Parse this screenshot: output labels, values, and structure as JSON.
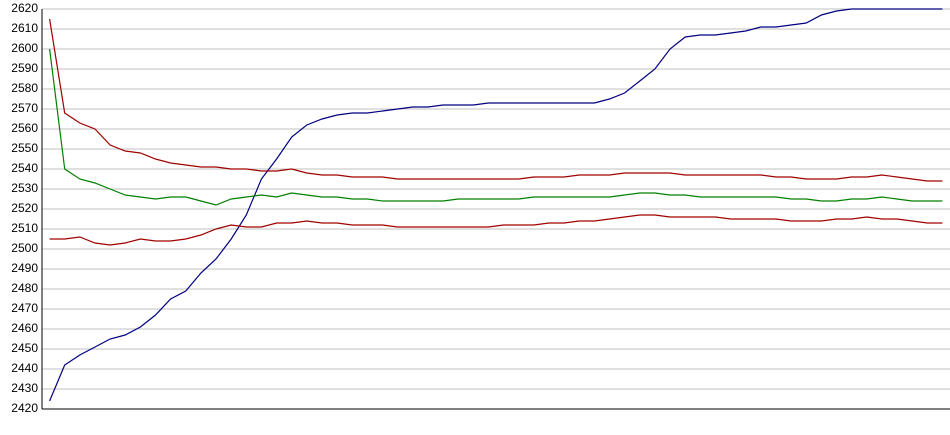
{
  "chart_data": {
    "type": "line",
    "categories": [
      null,
      null,
      null,
      null,
      null,
      null,
      null,
      null,
      null,
      null,
      null,
      null,
      null,
      null,
      null,
      null,
      null,
      null,
      null,
      null,
      null,
      null,
      null,
      null,
      null,
      null,
      null,
      null,
      null,
      null,
      null,
      null,
      null,
      null,
      null,
      null,
      null,
      null,
      null,
      null,
      null,
      null,
      null,
      null,
      null,
      null,
      null,
      null,
      null,
      null,
      null,
      null,
      null,
      null,
      null,
      null,
      null,
      null,
      null,
      null
    ],
    "series": [
      {
        "color": "#000080",
        "values": [
          2424,
          2442,
          2447,
          2451,
          2455,
          2457,
          2461,
          2467,
          2475,
          2479,
          2488,
          2495,
          2505,
          2517,
          2535,
          2545,
          2556,
          2562,
          2565,
          2567,
          2568,
          2568,
          2569,
          2570,
          2571,
          2571,
          2572,
          2572,
          2572,
          2573,
          2573,
          2573,
          2573,
          2573,
          2573,
          2573,
          2573,
          2575,
          2578,
          2584,
          2590,
          2600,
          2606,
          2607,
          2607,
          2608,
          2609,
          2611,
          2611,
          2612,
          2613,
          2617,
          2619,
          2620,
          2620,
          2620,
          2620,
          2620,
          2620,
          2620
        ]
      },
      {
        "color": "#a00000",
        "values": [
          2615,
          2568,
          2563,
          2560,
          2552,
          2549,
          2548,
          2545,
          2543,
          2542,
          2541,
          2541,
          2540,
          2540,
          2539,
          2539,
          2540,
          2538,
          2537,
          2537,
          2536,
          2536,
          2536,
          2535,
          2535,
          2535,
          2535,
          2535,
          2535,
          2535,
          2535,
          2535,
          2536,
          2536,
          2536,
          2537,
          2537,
          2537,
          2538,
          2538,
          2538,
          2538,
          2537,
          2537,
          2537,
          2537,
          2537,
          2537,
          2536,
          2536,
          2535,
          2535,
          2535,
          2536,
          2536,
          2537,
          2536,
          2535,
          2534,
          2534
        ]
      },
      {
        "color": "#008000",
        "values": [
          2600,
          2540,
          2535,
          2533,
          2530,
          2527,
          2526,
          2525,
          2526,
          2526,
          2524,
          2522,
          2525,
          2526,
          2527,
          2526,
          2528,
          2527,
          2526,
          2526,
          2525,
          2525,
          2524,
          2524,
          2524,
          2524,
          2524,
          2525,
          2525,
          2525,
          2525,
          2525,
          2526,
          2526,
          2526,
          2526,
          2526,
          2526,
          2527,
          2528,
          2528,
          2527,
          2527,
          2526,
          2526,
          2526,
          2526,
          2526,
          2526,
          2525,
          2525,
          2524,
          2524,
          2525,
          2525,
          2526,
          2525,
          2524,
          2524,
          2524
        ]
      },
      {
        "color": "#a00000",
        "values": [
          2505,
          2505,
          2506,
          2503,
          2502,
          2503,
          2505,
          2504,
          2504,
          2505,
          2507,
          2510,
          2512,
          2511,
          2511,
          2513,
          2513,
          2514,
          2513,
          2513,
          2512,
          2512,
          2512,
          2511,
          2511,
          2511,
          2511,
          2511,
          2511,
          2511,
          2512,
          2512,
          2512,
          2513,
          2513,
          2514,
          2514,
          2515,
          2516,
          2517,
          2517,
          2516,
          2516,
          2516,
          2516,
          2515,
          2515,
          2515,
          2515,
          2514,
          2514,
          2514,
          2515,
          2515,
          2516,
          2515,
          2515,
          2514,
          2513,
          2513
        ]
      }
    ],
    "ylim": [
      2420,
      2620
    ],
    "yticks": [
      2420,
      2430,
      2440,
      2450,
      2460,
      2470,
      2480,
      2490,
      2500,
      2510,
      2520,
      2530,
      2540,
      2550,
      2560,
      2570,
      2580,
      2590,
      2600,
      2610,
      2620
    ],
    "grid": true
  }
}
